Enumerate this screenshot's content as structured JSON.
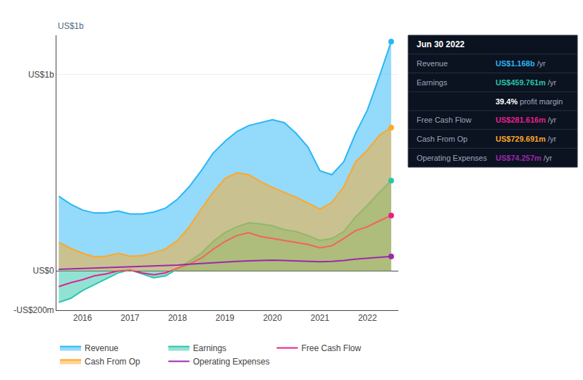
{
  "chart_data": {
    "type": "line",
    "x": [
      2015.5,
      2015.75,
      2016.0,
      2016.25,
      2016.5,
      2016.75,
      2017.0,
      2017.25,
      2017.5,
      2017.75,
      2018.0,
      2018.25,
      2018.5,
      2018.75,
      2019.0,
      2019.25,
      2019.5,
      2019.75,
      2020.0,
      2020.25,
      2020.5,
      2020.75,
      2021.0,
      2021.25,
      2021.5,
      2021.75,
      2022.0,
      2022.25,
      2022.5
    ],
    "series": [
      {
        "name": "Revenue",
        "color": "#29b6f6",
        "type": "area",
        "values": [
          380,
          340,
          310,
          295,
          295,
          305,
          290,
          290,
          300,
          320,
          365,
          430,
          510,
          600,
          660,
          710,
          740,
          755,
          770,
          755,
          700,
          630,
          510,
          490,
          555,
          700,
          820,
          990,
          1168
        ]
      },
      {
        "name": "Earnings",
        "color": "#26c6aa",
        "type": "area",
        "values": [
          -160,
          -140,
          -100,
          -70,
          -40,
          -10,
          5,
          -15,
          -35,
          -25,
          10,
          50,
          90,
          150,
          195,
          225,
          245,
          240,
          230,
          210,
          200,
          180,
          155,
          165,
          200,
          275,
          335,
          400,
          460
        ]
      },
      {
        "name": "Free Cash Flow",
        "color": "#e91e8c",
        "type": "line",
        "values": [
          -80,
          -60,
          -45,
          -25,
          -15,
          0,
          5,
          -10,
          -20,
          -10,
          15,
          35,
          65,
          110,
          150,
          180,
          195,
          175,
          165,
          155,
          145,
          135,
          118,
          128,
          165,
          205,
          225,
          255,
          282
        ]
      },
      {
        "name": "Cash From Op",
        "color": "#ffa726",
        "type": "area",
        "values": [
          145,
          115,
          90,
          72,
          75,
          90,
          75,
          78,
          92,
          112,
          155,
          225,
          315,
          400,
          470,
          500,
          490,
          455,
          425,
          400,
          375,
          345,
          315,
          348,
          428,
          555,
          615,
          690,
          730
        ]
      },
      {
        "name": "Operating Expenses",
        "color": "#9c27b0",
        "type": "line",
        "values": [
          8,
          10,
          12,
          14,
          16,
          18,
          20,
          22,
          24,
          27,
          30,
          34,
          38,
          42,
          46,
          49,
          51,
          53,
          55,
          53,
          51,
          49,
          47,
          49,
          53,
          60,
          64,
          69,
          74
        ]
      }
    ],
    "xlim": [
      2015.45,
      2022.65
    ],
    "xticks": [
      2016,
      2017,
      2018,
      2019,
      2020,
      2021,
      2022
    ],
    "ylim": [
      -200,
      1200
    ],
    "yticks": [
      {
        "value": -200,
        "label": "-US$200m"
      },
      {
        "value": 0,
        "label": "US$0"
      },
      {
        "value": 1000,
        "label": "US$1b"
      }
    ],
    "grid": true,
    "legend": "bottom",
    "annotations": [
      "US$1b"
    ],
    "info_box": {
      "title": "Jun 30 2022",
      "rows": [
        {
          "label": "Revenue",
          "value": "US$1.168b",
          "suffix": " /yr",
          "color": "#29b6f6"
        },
        {
          "label": "Earnings",
          "value": "US$459.761m",
          "suffix": " /yr",
          "color": "#26c6aa"
        },
        {
          "value": "39.4%",
          "suffix": " profit margin",
          "color": "white"
        },
        {
          "label": "Free Cash Flow",
          "value": "US$281.616m",
          "suffix": " /yr",
          "color": "#e91e8c"
        },
        {
          "label": "Cash From Op",
          "value": "US$729.691m",
          "suffix": " /yr",
          "color": "#ffa726"
        },
        {
          "label": "Operating Expenses",
          "value": "US$74.257m",
          "suffix": " /yr",
          "color": "#9c27b0"
        }
      ]
    }
  }
}
